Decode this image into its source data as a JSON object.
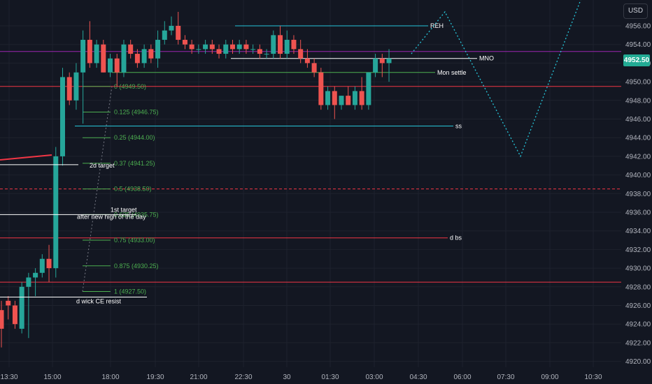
{
  "header": {
    "currency_label": "USD"
  },
  "last_price": {
    "label": "4952.50",
    "value": 4952.5,
    "color": "#22ab94"
  },
  "colors": {
    "background": "#131722",
    "up": "#26a69a",
    "down": "#ef5350",
    "grid": "#1e222d",
    "axis_text": "#b2b5be",
    "cyan": "#26c6da",
    "green": "#4caf50",
    "red": "#f23645",
    "purple": "#9c27b0",
    "white": "#ffffff"
  },
  "chart_data": {
    "type": "candlestick",
    "y_axis": {
      "range": [
        4919.5,
        4957.5
      ],
      "ticks": [
        "4956.00",
        "4954.00",
        "4952.00",
        "4950.00",
        "4948.00",
        "4946.00",
        "4944.00",
        "4942.00",
        "4940.00",
        "4938.00",
        "4936.00",
        "4934.00",
        "4932.00",
        "4930.00",
        "4928.00",
        "4926.00",
        "4924.00",
        "4922.00",
        "4920.00"
      ]
    },
    "x_axis": {
      "labels": [
        "13:30",
        "15:00",
        "18:00",
        "19:30",
        "21:00",
        "22:30",
        "30",
        "01:30",
        "03:00",
        "04:30",
        "06:00",
        "07:30",
        "09:00",
        "10:30"
      ]
    },
    "candles": [
      {
        "o": 4925.5,
        "h": 4926.5,
        "l": 4921.5,
        "c": 4923.5
      },
      {
        "o": 4926.5,
        "h": 4927.0,
        "l": 4924.5,
        "c": 4926.0
      },
      {
        "o": 4926.0,
        "h": 4926.5,
        "l": 4923.5,
        "c": 4924.0
      },
      {
        "o": 4923.5,
        "h": 4928.5,
        "l": 4923.0,
        "c": 4928.0
      },
      {
        "o": 4928.0,
        "h": 4929.5,
        "l": 4922.5,
        "c": 4929.0
      },
      {
        "o": 4929.0,
        "h": 4930.0,
        "l": 4927.0,
        "c": 4929.5
      },
      {
        "o": 4929.5,
        "h": 4931.5,
        "l": 4929.0,
        "c": 4931.0
      },
      {
        "o": 4931.0,
        "h": 4932.5,
        "l": 4928.5,
        "c": 4930.0
      },
      {
        "o": 4930.0,
        "h": 4943.0,
        "l": 4929.0,
        "c": 4942.0
      },
      {
        "o": 4942.0,
        "h": 4951.5,
        "l": 4941.0,
        "c": 4950.5
      },
      {
        "o": 4950.5,
        "h": 4951.0,
        "l": 4947.5,
        "c": 4948.0
      },
      {
        "o": 4948.0,
        "h": 4952.0,
        "l": 4947.0,
        "c": 4951.0
      },
      {
        "o": 4951.0,
        "h": 4955.5,
        "l": 4945.5,
        "c": 4954.5
      },
      {
        "o": 4954.5,
        "h": 4956.5,
        "l": 4951.5,
        "c": 4952.0
      },
      {
        "o": 4952.0,
        "h": 4954.5,
        "l": 4951.5,
        "c": 4954.0
      },
      {
        "o": 4954.0,
        "h": 4954.5,
        "l": 4951.0,
        "c": 4951.0
      },
      {
        "o": 4951.0,
        "h": 4953.0,
        "l": 4950.5,
        "c": 4952.5
      },
      {
        "o": 4952.5,
        "h": 4953.0,
        "l": 4949.5,
        "c": 4951.0
      },
      {
        "o": 4951.0,
        "h": 4954.5,
        "l": 4950.5,
        "c": 4954.0
      },
      {
        "o": 4954.0,
        "h": 4954.5,
        "l": 4952.5,
        "c": 4953.0
      },
      {
        "o": 4953.0,
        "h": 4953.5,
        "l": 4951.5,
        "c": 4952.0
      },
      {
        "o": 4952.0,
        "h": 4954.0,
        "l": 4951.5,
        "c": 4953.5
      },
      {
        "o": 4953.5,
        "h": 4954.0,
        "l": 4952.0,
        "c": 4952.5
      },
      {
        "o": 4952.5,
        "h": 4955.5,
        "l": 4951.5,
        "c": 4954.5
      },
      {
        "o": 4954.5,
        "h": 4956.5,
        "l": 4954.0,
        "c": 4955.5
      },
      {
        "o": 4955.5,
        "h": 4957.0,
        "l": 4955.0,
        "c": 4956.0
      },
      {
        "o": 4956.0,
        "h": 4957.5,
        "l": 4954.0,
        "c": 4954.5
      },
      {
        "o": 4954.5,
        "h": 4955.0,
        "l": 4953.5,
        "c": 4954.0
      },
      {
        "o": 4954.0,
        "h": 4954.5,
        "l": 4953.0,
        "c": 4953.5
      },
      {
        "o": 4953.5,
        "h": 4954.0,
        "l": 4953.0,
        "c": 4953.5
      },
      {
        "o": 4953.5,
        "h": 4954.5,
        "l": 4953.0,
        "c": 4954.0
      },
      {
        "o": 4954.0,
        "h": 4954.5,
        "l": 4953.0,
        "c": 4953.5
      },
      {
        "o": 4953.5,
        "h": 4954.0,
        "l": 4952.5,
        "c": 4953.0
      },
      {
        "o": 4953.0,
        "h": 4954.5,
        "l": 4952.5,
        "c": 4954.0
      },
      {
        "o": 4954.0,
        "h": 4954.5,
        "l": 4953.0,
        "c": 4953.5
      },
      {
        "o": 4953.5,
        "h": 4954.5,
        "l": 4953.0,
        "c": 4954.0
      },
      {
        "o": 4954.0,
        "h": 4954.5,
        "l": 4953.0,
        "c": 4953.5
      },
      {
        "o": 4953.5,
        "h": 4954.0,
        "l": 4953.0,
        "c": 4953.5
      },
      {
        "o": 4953.5,
        "h": 4954.0,
        "l": 4952.5,
        "c": 4953.0
      },
      {
        "o": 4953.0,
        "h": 4953.5,
        "l": 4952.5,
        "c": 4953.0
      },
      {
        "o": 4953.0,
        "h": 4955.5,
        "l": 4952.5,
        "c": 4955.0
      },
      {
        "o": 4955.0,
        "h": 4956.0,
        "l": 4952.5,
        "c": 4953.0
      },
      {
        "o": 4953.0,
        "h": 4955.5,
        "l": 4952.5,
        "c": 4954.5
      },
      {
        "o": 4954.5,
        "h": 4955.0,
        "l": 4953.0,
        "c": 4953.5
      },
      {
        "o": 4953.5,
        "h": 4954.5,
        "l": 4952.0,
        "c": 4952.5
      },
      {
        "o": 4952.5,
        "h": 4953.5,
        "l": 4951.5,
        "c": 4952.0
      },
      {
        "o": 4952.0,
        "h": 4952.5,
        "l": 4950.5,
        "c": 4951.0
      },
      {
        "o": 4951.0,
        "h": 4951.5,
        "l": 4947.0,
        "c": 4947.5
      },
      {
        "o": 4947.5,
        "h": 4949.5,
        "l": 4947.0,
        "c": 4949.0
      },
      {
        "o": 4949.0,
        "h": 4949.5,
        "l": 4946.0,
        "c": 4947.5
      },
      {
        "o": 4947.5,
        "h": 4948.5,
        "l": 4947.0,
        "c": 4948.5
      },
      {
        "o": 4948.5,
        "h": 4949.5,
        "l": 4947.5,
        "c": 4947.5
      },
      {
        "o": 4947.5,
        "h": 4949.5,
        "l": 4947.0,
        "c": 4949.0
      },
      {
        "o": 4949.0,
        "h": 4950.5,
        "l": 4947.0,
        "c": 4947.5
      },
      {
        "o": 4947.5,
        "h": 4951.0,
        "l": 4947.0,
        "c": 4951.0
      },
      {
        "o": 4951.0,
        "h": 4953.0,
        "l": 4950.5,
        "c": 4952.5
      },
      {
        "o": 4952.5,
        "h": 4953.0,
        "l": 4950.5,
        "c": 4952.0
      },
      {
        "o": 4952.0,
        "h": 4953.5,
        "l": 4950.0,
        "c": 4952.5
      }
    ],
    "horizontal_levels": [
      {
        "price": 4956.0,
        "label": "REH",
        "color": "#26c6da"
      },
      {
        "price": 4952.5,
        "label": "MNO",
        "color": "#ffffff"
      },
      {
        "price": 4951.0,
        "label": "Mon settle",
        "color": "#4caf50"
      },
      {
        "price": 4945.25,
        "label": "ss",
        "color": "#26c6da"
      },
      {
        "price": 4933.25,
        "label": "d bs",
        "color": "#f23645"
      },
      {
        "price": 4949.5,
        "label": "",
        "color": "#f23645"
      },
      {
        "price": 4928.5,
        "label": "",
        "color": "#f23645"
      },
      {
        "price": 4938.5,
        "label": "",
        "color": "#f23645"
      },
      {
        "price": 4953.25,
        "label": "",
        "color": "#9c27b0"
      }
    ],
    "fib_levels": [
      {
        "ratio": "0",
        "price": 4949.5
      },
      {
        "ratio": "0.125",
        "price": 4946.75
      },
      {
        "ratio": "0.25",
        "price": 4944.0
      },
      {
        "ratio": "0.37",
        "price": 4941.25
      },
      {
        "ratio": "0.5",
        "price": 4938.5
      },
      {
        "ratio": "0.625",
        "price": 4935.75
      },
      {
        "ratio": "0.75",
        "price": 4933.0
      },
      {
        "ratio": "0.875",
        "price": 4930.25
      },
      {
        "ratio": "1",
        "price": 4927.5
      }
    ],
    "annotations": {
      "second_target": "2d target",
      "first_target_line1": "1st target",
      "first_target_line2": "after new high of the day",
      "wick_label": "d wick CE resist"
    },
    "projection_path": [
      4953.0,
      4957.5,
      4942.0,
      4960.0
    ]
  }
}
